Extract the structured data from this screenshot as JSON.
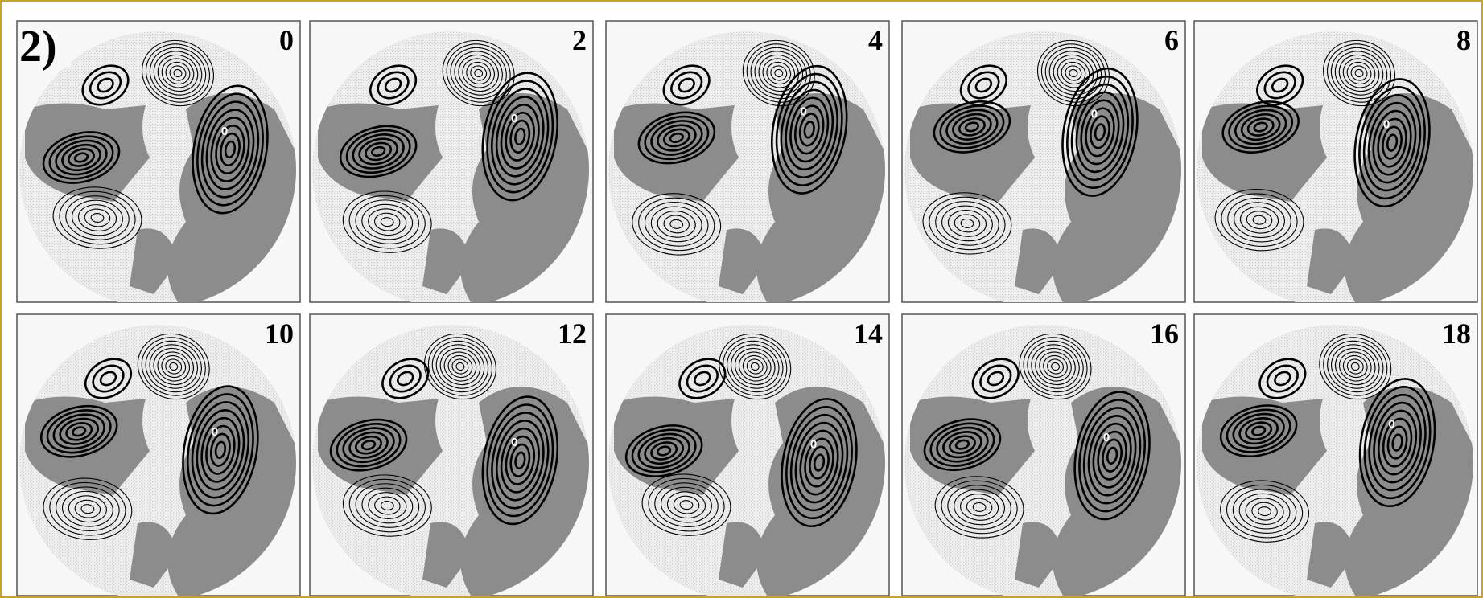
{
  "figure_label": "2)",
  "panels": [
    {
      "label": "0",
      "marker": "0"
    },
    {
      "label": "2",
      "marker": "0"
    },
    {
      "label": "4",
      "marker": "0"
    },
    {
      "label": "6",
      "marker": "0"
    },
    {
      "label": "8",
      "marker": "0"
    },
    {
      "label": "10",
      "marker": "0"
    },
    {
      "label": "12",
      "marker": "0"
    },
    {
      "label": "14",
      "marker": "0"
    },
    {
      "label": "16",
      "marker": "0"
    },
    {
      "label": "18",
      "marker": "0"
    }
  ]
}
